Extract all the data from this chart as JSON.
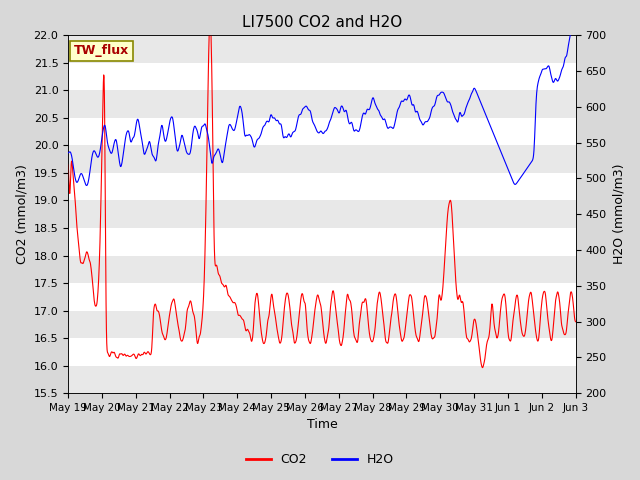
{
  "title": "LI7500 CO2 and H2O",
  "xlabel": "Time",
  "ylabel_left": "CO2 (mmol/m3)",
  "ylabel_right": "H2O (mmol/m3)",
  "co2_color": "#FF0000",
  "h2o_color": "#0000FF",
  "ylim_left": [
    15.5,
    22.0
  ],
  "ylim_right": [
    200,
    700
  ],
  "yticks_left": [
    15.5,
    16.0,
    16.5,
    17.0,
    17.5,
    18.0,
    18.5,
    19.0,
    19.5,
    20.0,
    20.5,
    21.0,
    21.5,
    22.0
  ],
  "yticks_right": [
    200,
    250,
    300,
    350,
    400,
    450,
    500,
    550,
    600,
    650,
    700
  ],
  "bg_color": "#D8D8D8",
  "plot_bg": "#FFFFFF",
  "stripe_color": "#E8E8E8",
  "legend_label_co2": "CO2",
  "legend_label_h2o": "H2O",
  "watermark_text": "TW_flux",
  "watermark_color": "#AA0000",
  "watermark_bg": "#FFFFCC",
  "watermark_border": "#888800",
  "title_fontsize": 11,
  "axis_fontsize": 9,
  "tick_fontsize": 8,
  "legend_fontsize": 9,
  "n_points": 1500,
  "seed": 42
}
